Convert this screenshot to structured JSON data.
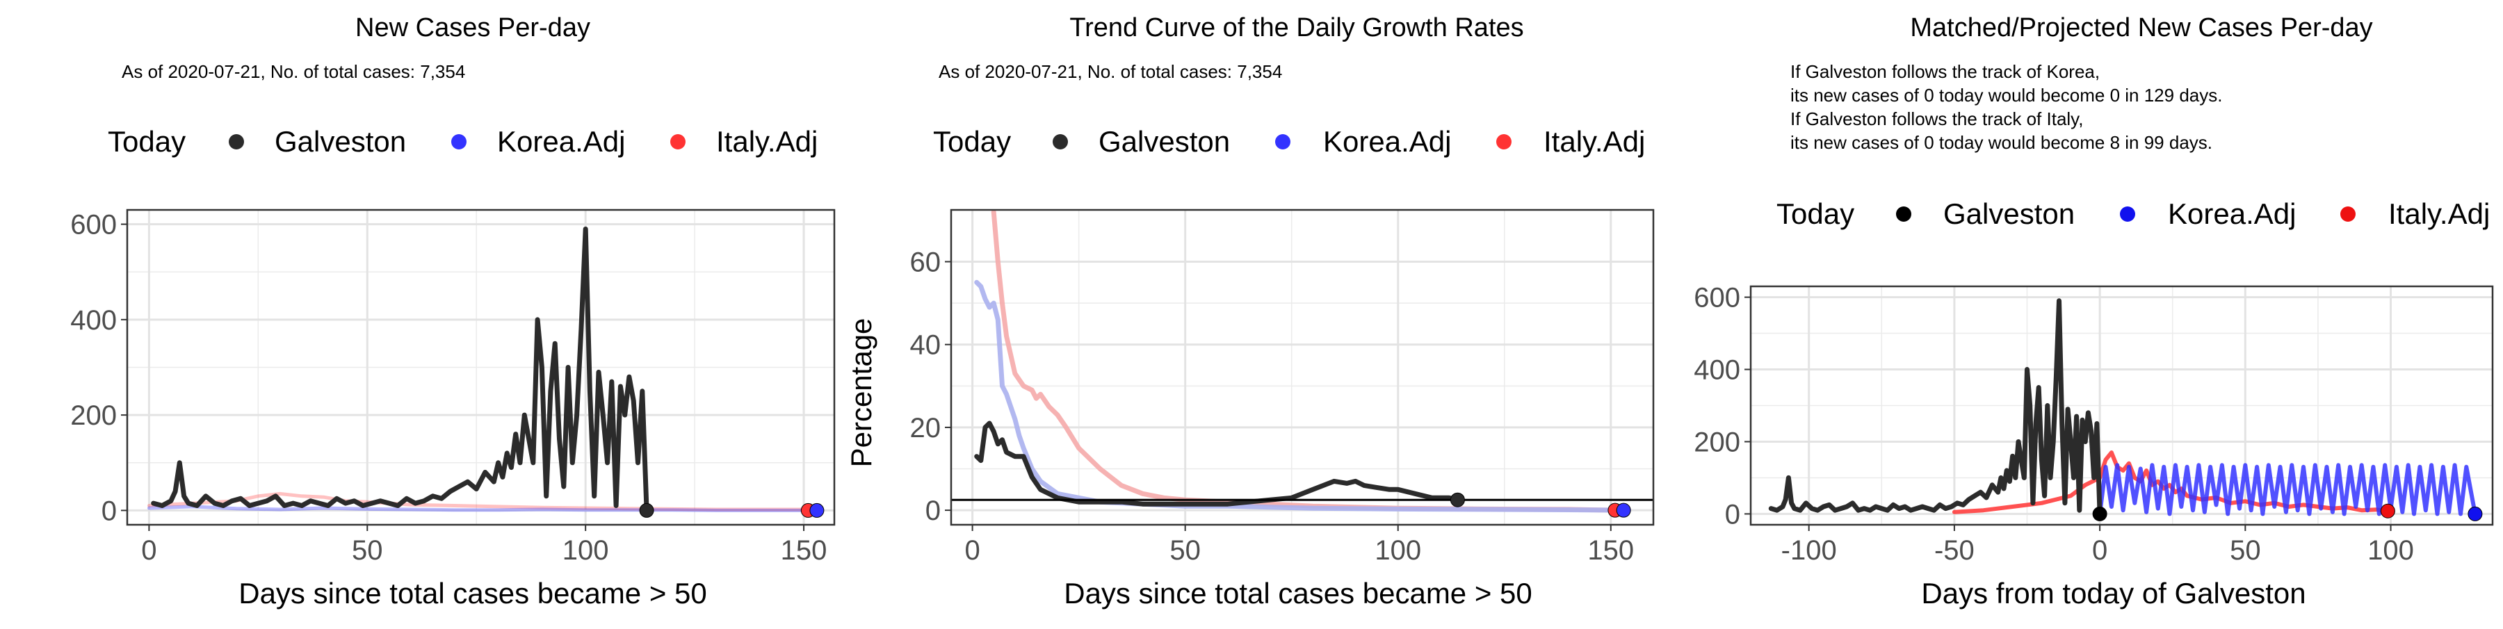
{
  "panels": {
    "p1": {
      "title": "New Cases Per-day",
      "subtitle": "As of 2020-07-21, No. of total cases: 7,354",
      "legend": {
        "title": "Today",
        "items": [
          "Galveston",
          "Korea.Adj",
          "Italy.Adj"
        ]
      },
      "xlabel": "Days since total cases became > 50",
      "ylabel": ""
    },
    "p2": {
      "title": "Trend Curve of the Daily Growth Rates",
      "subtitle": "As of 2020-07-21, No. of total cases: 7,354",
      "legend": {
        "title": "Today",
        "items": [
          "Galveston",
          "Korea.Adj",
          "Italy.Adj"
        ]
      },
      "xlabel": "Days since total cases became > 50",
      "ylabel": "Percentage"
    },
    "p3": {
      "title": "Matched/Projected New Cases Per-day",
      "notes": [
        "If Galveston follows the track of Korea,",
        "its new cases of 0 today would become 0 in 129 days.",
        "If Galveston follows the track of Italy,",
        "its new cases of 0 today would become 8 in 99 days."
      ],
      "legend": {
        "title": "Today",
        "items": [
          "Galveston",
          "Korea.Adj",
          "Italy.Adj"
        ]
      },
      "xlabel": "Days from today of Galveston",
      "ylabel": ""
    }
  },
  "colors": {
    "galveston": "#2b2b2b",
    "korea": "#3333ff",
    "italy": "#ff3333",
    "korea_light": "#aab0ee",
    "italy_light": "#f5aaaa",
    "grid": "#ebebeb",
    "frame": "#333333"
  },
  "chart_data": [
    {
      "type": "line",
      "title": "New Cases Per-day",
      "xlabel": "Days since total cases became > 50",
      "ylabel": "",
      "xlim": [
        -5,
        157
      ],
      "ylim": [
        -30,
        630
      ],
      "xticks": [
        0,
        50,
        100,
        150
      ],
      "yticks": [
        0,
        200,
        400,
        600
      ],
      "grid": true,
      "legend_position": "top",
      "series": [
        {
          "name": "Galveston",
          "x": [
            1,
            3,
            5,
            6,
            7,
            8,
            9,
            11,
            13,
            15,
            17,
            19,
            21,
            23,
            25,
            27,
            29,
            31,
            33,
            35,
            37,
            39,
            41,
            43,
            45,
            47,
            49,
            51,
            53,
            55,
            57,
            59,
            61,
            63,
            65,
            67,
            69,
            71,
            73,
            75,
            77,
            79,
            80,
            81,
            82,
            83,
            84,
            85,
            86,
            87,
            88,
            89,
            90,
            91,
            92,
            93,
            94,
            95,
            96,
            97,
            98,
            99,
            100,
            101,
            102,
            103,
            104,
            105,
            106,
            107,
            108,
            109,
            110,
            111,
            112,
            113,
            114
          ],
          "y": [
            15,
            10,
            20,
            40,
            100,
            30,
            15,
            10,
            30,
            15,
            10,
            20,
            25,
            10,
            15,
            20,
            30,
            10,
            15,
            10,
            20,
            15,
            10,
            25,
            15,
            20,
            10,
            15,
            20,
            15,
            10,
            25,
            15,
            20,
            30,
            25,
            40,
            50,
            60,
            45,
            80,
            60,
            100,
            70,
            120,
            90,
            160,
            100,
            200,
            150,
            100,
            400,
            300,
            30,
            250,
            350,
            150,
            50,
            300,
            100,
            200,
            380,
            590,
            250,
            30,
            290,
            200,
            100,
            270,
            10,
            260,
            200,
            280,
            230,
            100,
            250,
            0
          ]
        },
        {
          "name": "Korea.Adj",
          "x": [
            0,
            10,
            20,
            30,
            40,
            50,
            60,
            70,
            80,
            90,
            100,
            110,
            120,
            130,
            140,
            153
          ],
          "y": [
            5,
            8,
            4,
            2,
            5,
            3,
            2,
            1,
            1,
            2,
            1,
            1,
            1,
            0,
            0,
            0
          ]
        },
        {
          "name": "Italy.Adj",
          "x": [
            0,
            10,
            20,
            25,
            30,
            35,
            40,
            45,
            50,
            55,
            60,
            70,
            80,
            90,
            100,
            110,
            120,
            130,
            140,
            151
          ],
          "y": [
            10,
            15,
            20,
            30,
            35,
            30,
            28,
            20,
            18,
            15,
            12,
            10,
            8,
            6,
            5,
            4,
            3,
            2,
            2,
            2
          ]
        }
      ],
      "today_points": [
        {
          "name": "Galveston",
          "x": 114,
          "y": 0
        },
        {
          "name": "Korea.Adj",
          "x": 153,
          "y": 0
        },
        {
          "name": "Italy.Adj",
          "x": 151,
          "y": 0
        }
      ]
    },
    {
      "type": "line",
      "title": "Trend Curve of the Daily Growth Rates",
      "xlabel": "Days since total cases became > 50",
      "ylabel": "Percentage",
      "xlim": [
        -5,
        160
      ],
      "ylim": [
        -3.5,
        72.5
      ],
      "xticks": [
        0,
        50,
        100,
        150
      ],
      "yticks": [
        0,
        20,
        40,
        60
      ],
      "grid": true,
      "legend_position": "top",
      "hline": 2.5,
      "series": [
        {
          "name": "Galveston",
          "x": [
            1,
            2,
            3,
            4,
            5,
            6,
            7,
            8,
            10,
            12,
            14,
            16,
            18,
            20,
            25,
            30,
            35,
            40,
            45,
            50,
            55,
            60,
            65,
            70,
            75,
            80,
            85,
            88,
            90,
            92,
            95,
            98,
            100,
            104,
            108,
            112,
            114
          ],
          "y": [
            13,
            12,
            20,
            21,
            19,
            16,
            17,
            14,
            13,
            13,
            8,
            5,
            4,
            3,
            2,
            2,
            2,
            1.5,
            1.5,
            1.5,
            1.5,
            1.5,
            2,
            2.5,
            3,
            5,
            7,
            6.5,
            7,
            6,
            5.5,
            5,
            5,
            4,
            3,
            3,
            2.5
          ]
        },
        {
          "name": "Korea.Adj",
          "x": [
            1,
            2,
            3,
            4,
            5,
            6,
            7,
            8,
            9,
            10,
            11,
            12,
            14,
            16,
            20,
            25,
            30,
            40,
            50,
            60,
            80,
            100,
            120,
            140,
            153
          ],
          "y": [
            55,
            54,
            51,
            49,
            50,
            46,
            30,
            28,
            25,
            22,
            18,
            15,
            10,
            7,
            4,
            3,
            2,
            1.5,
            1,
            1,
            0.5,
            0.3,
            0.2,
            0.1,
            0
          ]
        },
        {
          "name": "Italy.Adj",
          "x": [
            5,
            6,
            7,
            8,
            10,
            12,
            14,
            15,
            16,
            18,
            20,
            22,
            25,
            30,
            35,
            40,
            45,
            50,
            60,
            70,
            80,
            100,
            120,
            140,
            151
          ],
          "y": [
            72,
            60,
            50,
            42,
            33,
            30,
            29,
            27,
            28,
            25,
            23,
            20,
            15,
            10,
            6,
            4,
            3,
            2.5,
            2,
            1.5,
            1,
            0.5,
            0.3,
            0.2,
            0
          ]
        }
      ],
      "today_points": [
        {
          "name": "Galveston",
          "x": 114,
          "y": 2.5
        },
        {
          "name": "Korea.Adj",
          "x": 153,
          "y": 0
        },
        {
          "name": "Italy.Adj",
          "x": 151,
          "y": 0
        }
      ]
    },
    {
      "type": "line",
      "title": "Matched/Projected New Cases Per-day",
      "xlabel": "Days from today of Galveston",
      "ylabel": "",
      "xlim": [
        -120,
        135
      ],
      "ylim": [
        -30,
        630
      ],
      "xticks": [
        -100,
        -50,
        0,
        50,
        100
      ],
      "yticks": [
        0,
        200,
        400,
        600
      ],
      "grid": true,
      "legend_position": "top",
      "series": [
        {
          "name": "Galveston",
          "x": [
            -113,
            -111,
            -109,
            -108,
            -107,
            -106,
            -105,
            -103,
            -101,
            -99,
            -97,
            -95,
            -93,
            -91,
            -89,
            -87,
            -85,
            -83,
            -81,
            -79,
            -77,
            -75,
            -73,
            -71,
            -69,
            -67,
            -65,
            -63,
            -61,
            -59,
            -57,
            -55,
            -53,
            -51,
            -49,
            -47,
            -45,
            -43,
            -41,
            -39,
            -37,
            -35,
            -34,
            -33,
            -32,
            -31,
            -30,
            -29,
            -28,
            -27,
            -26,
            -25,
            -24,
            -23,
            -22,
            -21,
            -20,
            -19,
            -18,
            -17,
            -16,
            -15,
            -14,
            -13,
            -12,
            -11,
            -10,
            -9,
            -8,
            -7,
            -6,
            -5,
            -4,
            -3,
            -2,
            -1,
            0
          ],
          "y": [
            15,
            10,
            20,
            40,
            100,
            30,
            15,
            10,
            30,
            15,
            10,
            20,
            25,
            10,
            15,
            20,
            30,
            10,
            15,
            10,
            20,
            15,
            10,
            25,
            15,
            20,
            10,
            15,
            20,
            15,
            10,
            25,
            15,
            20,
            30,
            25,
            40,
            50,
            60,
            45,
            80,
            60,
            100,
            70,
            120,
            90,
            160,
            100,
            200,
            150,
            100,
            400,
            300,
            30,
            250,
            350,
            150,
            50,
            300,
            100,
            200,
            380,
            590,
            250,
            30,
            290,
            200,
            100,
            270,
            10,
            260,
            200,
            280,
            230,
            100,
            250,
            0
          ]
        },
        {
          "name": "Korea.Adj",
          "x": [
            0,
            2,
            4,
            6,
            8,
            10,
            12,
            14,
            16,
            18,
            20,
            22,
            24,
            26,
            28,
            30,
            32,
            34,
            36,
            38,
            40,
            42,
            44,
            46,
            48,
            50,
            52,
            54,
            56,
            58,
            60,
            62,
            64,
            66,
            68,
            70,
            72,
            74,
            76,
            78,
            80,
            82,
            84,
            86,
            88,
            90,
            92,
            94,
            96,
            98,
            100,
            102,
            104,
            106,
            108,
            110,
            112,
            114,
            116,
            118,
            120,
            122,
            124,
            126,
            129
          ],
          "y": [
            0,
            130,
            20,
            135,
            10,
            130,
            30,
            125,
            5,
            135,
            15,
            130,
            0,
            135,
            20,
            130,
            10,
            135,
            5,
            130,
            25,
            135,
            0,
            130,
            15,
            135,
            10,
            130,
            0,
            135,
            20,
            130,
            5,
            135,
            10,
            130,
            0,
            135,
            15,
            130,
            5,
            135,
            0,
            130,
            20,
            135,
            10,
            130,
            0,
            135,
            15,
            130,
            5,
            135,
            0,
            130,
            10,
            135,
            0,
            130,
            5,
            135,
            0,
            130,
            0
          ]
        },
        {
          "name": "Italy.Adj",
          "x": [
            -50,
            -40,
            -30,
            -20,
            -10,
            -5,
            0,
            2,
            4,
            6,
            8,
            10,
            12,
            14,
            16,
            18,
            20,
            22,
            24,
            26,
            28,
            30,
            35,
            40,
            45,
            50,
            55,
            60,
            65,
            70,
            75,
            80,
            85,
            90,
            95,
            99
          ],
          "y": [
            5,
            10,
            20,
            30,
            50,
            80,
            100,
            150,
            170,
            130,
            120,
            140,
            100,
            90,
            120,
            80,
            90,
            70,
            80,
            60,
            70,
            50,
            40,
            45,
            30,
            35,
            25,
            30,
            20,
            25,
            20,
            15,
            18,
            10,
            12,
            8
          ]
        }
      ],
      "today_points": [
        {
          "name": "Galveston",
          "x": 0,
          "y": 0
        },
        {
          "name": "Korea.Adj",
          "x": 129,
          "y": 0
        },
        {
          "name": "Italy.Adj",
          "x": 99,
          "y": 8
        }
      ]
    }
  ]
}
